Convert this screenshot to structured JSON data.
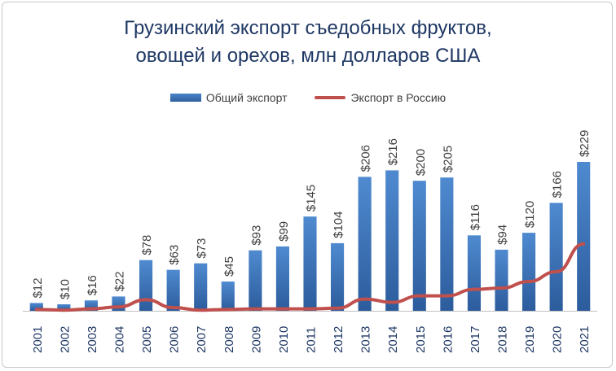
{
  "chart_data": {
    "type": "bar",
    "title_line1": "Грузинский экспорт съедобных фруктов,",
    "title_line2": "овощей и орехов, млн долларов США",
    "categories": [
      "2001",
      "2002",
      "2003",
      "2004",
      "2005",
      "2006",
      "2007",
      "2008",
      "2009",
      "2010",
      "2011",
      "2012",
      "2013",
      "2014",
      "2015",
      "2016",
      "2017",
      "2018",
      "2019",
      "2020",
      "2021"
    ],
    "series": [
      {
        "name": "Общий экспорт",
        "kind": "bar",
        "color": "#3a72bb",
        "values": [
          12,
          10,
          16,
          22,
          78,
          63,
          73,
          45,
          93,
          99,
          145,
          104,
          206,
          216,
          200,
          205,
          116,
          94,
          120,
          166,
          229
        ],
        "labels": [
          "$12",
          "$10",
          "$16",
          "$22",
          "$78",
          "$63",
          "$73",
          "$45",
          "$93",
          "$99",
          "$145",
          "$104",
          "$206",
          "$216",
          "$200",
          "$205",
          "$116",
          "$94",
          "$120",
          "$166",
          "$229"
        ]
      },
      {
        "name": "Экспорт в Россию",
        "kind": "line",
        "color": "#c0504d",
        "values": [
          2,
          1,
          3,
          6,
          17,
          5,
          1,
          2,
          3,
          3,
          3,
          4,
          18,
          13,
          23,
          23,
          33,
          35,
          45,
          60,
          103
        ]
      }
    ],
    "ylim": [
      0,
      240
    ],
    "grid": false,
    "legend": "top"
  }
}
